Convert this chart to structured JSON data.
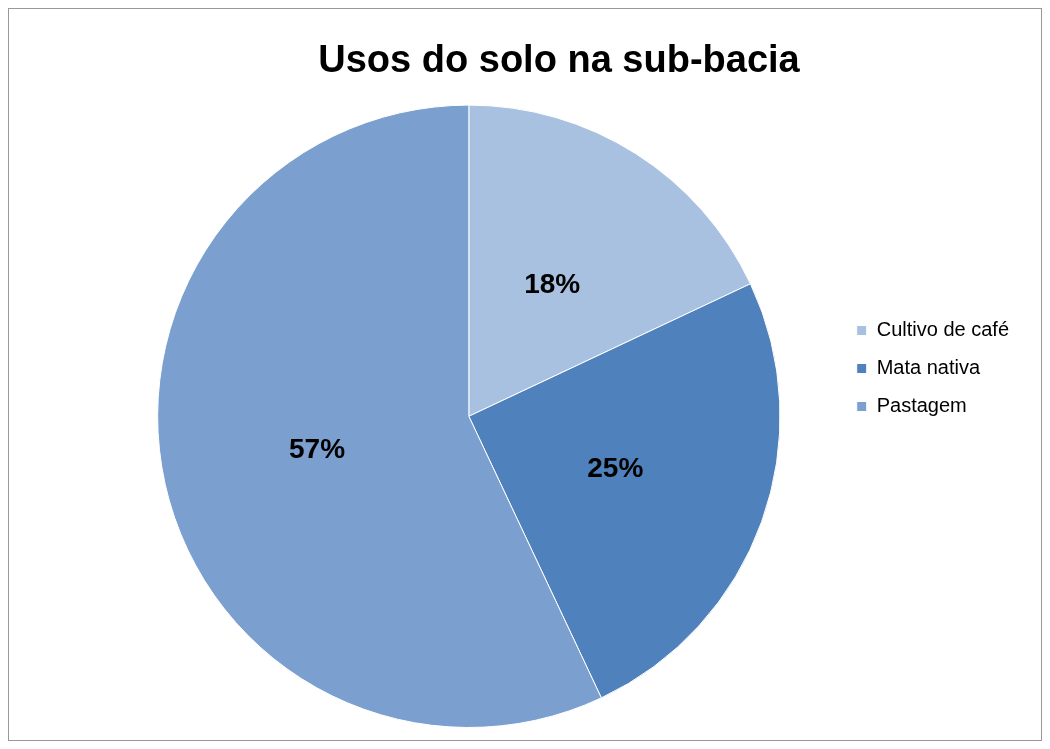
{
  "chart_data": {
    "type": "pie",
    "title": "Usos do solo na sub-bacia",
    "categories": [
      "Cultivo de café",
      "Mata nativa",
      "Pastagem"
    ],
    "values": [
      18,
      25,
      57
    ],
    "colors": [
      "#a9c1e0",
      "#4f81bd",
      "#7b9fcf"
    ],
    "value_labels": [
      "18%",
      "25%",
      "57%"
    ],
    "legend": "right"
  }
}
